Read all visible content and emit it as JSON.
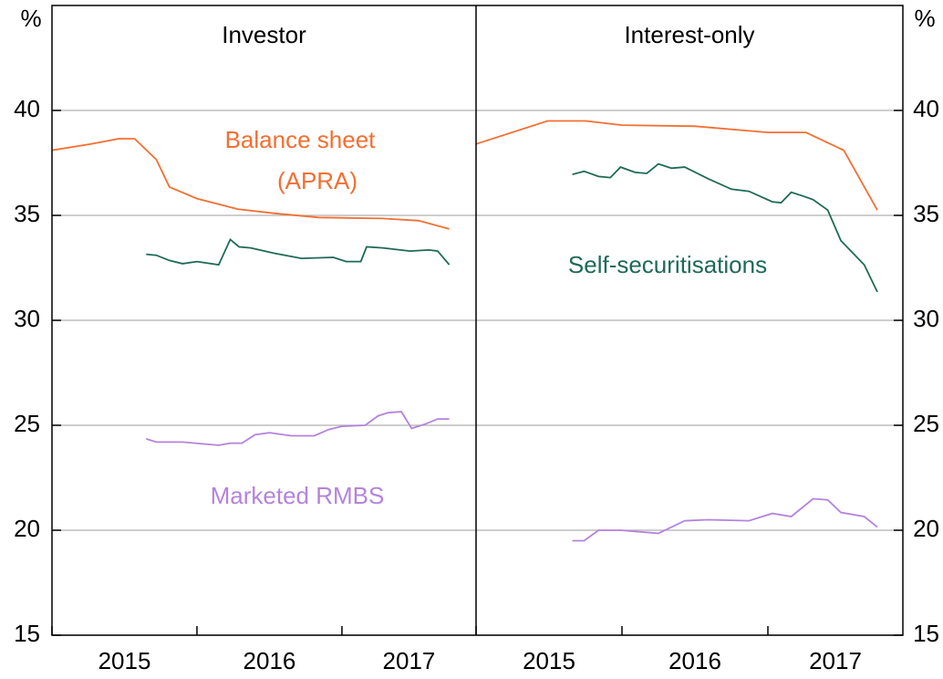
{
  "chart_data": [
    {
      "type": "line",
      "title": "Investor",
      "ylabel": "%",
      "yaxis_side": "left",
      "xlim": [
        2015,
        2017.925
      ],
      "xticks": [
        2015,
        2016,
        2017
      ],
      "ylim": [
        15,
        45
      ],
      "yticks": [
        15,
        20,
        25,
        30,
        35,
        40
      ],
      "grid": true,
      "series": [
        {
          "color": "#f36f32",
          "x": [
            2015,
            2015.27,
            2015.46,
            2015.57,
            2015.72,
            2015.81,
            2016.0,
            2016.28,
            2016.53,
            2016.84,
            2017.28,
            2017.53,
            2017.74
          ],
          "values": [
            38.1,
            38.4,
            38.65,
            38.65,
            37.65,
            36.35,
            35.8,
            35.3,
            35.1,
            34.9,
            34.85,
            34.75,
            34.35
          ]
        },
        {
          "color": "#1e6b55",
          "x": [
            2015.65,
            2015.72,
            2015.81,
            2015.9,
            2016.0,
            2016.15,
            2016.23,
            2016.29,
            2016.37,
            2016.53,
            2016.72,
            2016.94,
            2017.03,
            2017.13,
            2017.17,
            2017.28,
            2017.47,
            2017.6,
            2017.66,
            2017.74
          ],
          "values": [
            33.15,
            33.1,
            32.85,
            32.7,
            32.8,
            32.65,
            33.85,
            33.5,
            33.45,
            33.2,
            32.95,
            33.0,
            32.8,
            32.8,
            33.5,
            33.45,
            33.3,
            33.35,
            33.3,
            32.65
          ]
        },
        {
          "color": "#b583dc",
          "x": [
            2015.65,
            2015.72,
            2015.9,
            2016.15,
            2016.23,
            2016.31,
            2016.4,
            2016.5,
            2016.65,
            2016.81,
            2016.91,
            2017.0,
            2017.16,
            2017.25,
            2017.32,
            2017.41,
            2017.48,
            2017.57,
            2017.66,
            2017.74
          ],
          "values": [
            24.35,
            24.2,
            24.2,
            24.05,
            24.15,
            24.15,
            24.55,
            24.65,
            24.5,
            24.5,
            24.8,
            24.95,
            25.0,
            25.45,
            25.6,
            25.65,
            24.85,
            25.05,
            25.3,
            25.3
          ]
        }
      ],
      "annotations": [
        {
          "text": "Balance sheet",
          "color": "#f36f32"
        },
        {
          "text": "(APRA)",
          "color": "#f36f32"
        },
        {
          "text": "Marketed RMBS",
          "color": "#b583dc"
        }
      ]
    },
    {
      "type": "line",
      "title": "Interest-only",
      "ylabel": "%",
      "yaxis_side": "right",
      "xlim": [
        2015,
        2017.925
      ],
      "xticks": [
        2015,
        2016,
        2017
      ],
      "ylim": [
        15,
        45
      ],
      "yticks": [
        15,
        20,
        25,
        30,
        35,
        40
      ],
      "grid": true,
      "series": [
        {
          "color": "#f36f32",
          "x": [
            2015,
            2015.49,
            2015.75,
            2016.0,
            2016.5,
            2017.0,
            2017.26,
            2017.52,
            2017.75
          ],
          "values": [
            38.4,
            39.5,
            39.5,
            39.3,
            39.25,
            38.95,
            38.95,
            38.1,
            35.25
          ]
        },
        {
          "color": "#1e6b55",
          "x": [
            2015.66,
            2015.74,
            2015.84,
            2015.92,
            2015.99,
            2016.09,
            2016.17,
            2016.25,
            2016.34,
            2016.43,
            2016.59,
            2016.75,
            2016.87,
            2017.03,
            2017.09,
            2017.16,
            2017.25,
            2017.31,
            2017.41,
            2017.5,
            2017.66,
            2017.75
          ],
          "values": [
            36.95,
            37.1,
            36.85,
            36.8,
            37.3,
            37.05,
            37.0,
            37.45,
            37.25,
            37.3,
            36.75,
            36.25,
            36.15,
            35.65,
            35.6,
            36.1,
            35.9,
            35.75,
            35.25,
            33.8,
            32.65,
            31.35
          ]
        },
        {
          "color": "#b583dc",
          "x": [
            2015.66,
            2015.74,
            2015.84,
            2015.99,
            2016.25,
            2016.43,
            2016.59,
            2016.87,
            2017.03,
            2017.16,
            2017.31,
            2017.41,
            2017.5,
            2017.66,
            2017.75
          ],
          "values": [
            19.5,
            19.5,
            20.0,
            20.0,
            19.85,
            20.45,
            20.5,
            20.45,
            20.8,
            20.65,
            21.5,
            21.45,
            20.85,
            20.65,
            20.15
          ]
        }
      ],
      "annotations": [
        {
          "text": "Self-securitisations",
          "color": "#1e6b55"
        }
      ]
    }
  ]
}
